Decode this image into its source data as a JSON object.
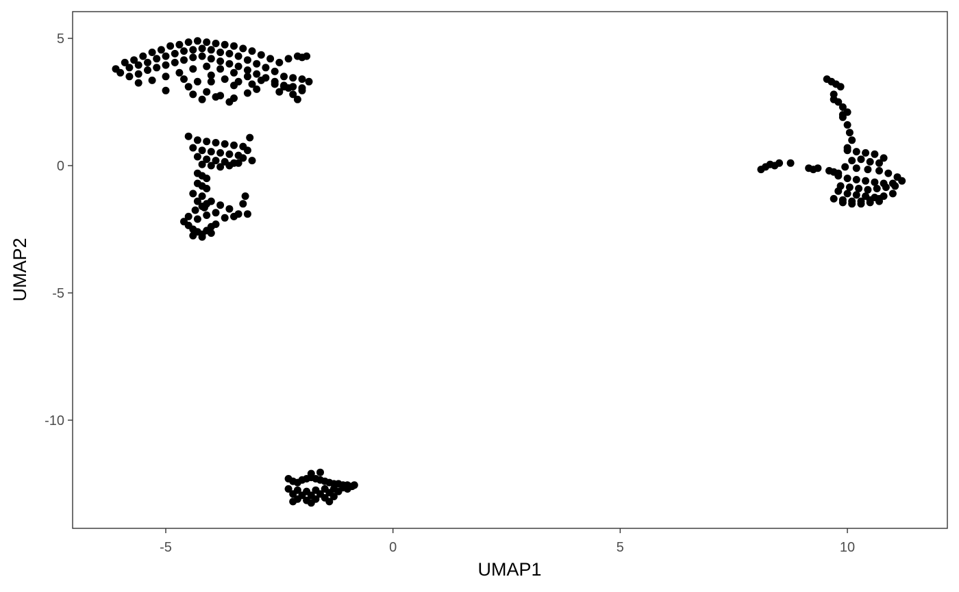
{
  "chart_data": {
    "type": "scatter",
    "title": "",
    "xlabel": "UMAP1",
    "ylabel": "UMAP2",
    "xlim": [
      -7.05,
      12.2
    ],
    "ylim": [
      -14.25,
      6.05
    ],
    "xticks": [
      -5,
      0,
      5,
      10
    ],
    "xtick_labels": [
      "-5",
      "0",
      "5",
      "10"
    ],
    "yticks": [
      5,
      0,
      -5,
      -10
    ],
    "ytick_labels": [
      "5",
      "0",
      "-5",
      "-10"
    ],
    "grid": false,
    "legend": "none",
    "point_color": "#000000",
    "series": [
      {
        "x": [
          -6.1,
          -5.9,
          -5.7,
          -5.5,
          -5.3,
          -5.1,
          -4.9,
          -4.7,
          -4.5,
          -4.3,
          -4.1,
          -3.9,
          -3.7,
          -3.5,
          -3.3,
          -3.1,
          -2.9,
          -2.7,
          -2.5,
          -2.3,
          -2.1,
          -6.0,
          -5.8,
          -5.6,
          -5.4,
          -5.2,
          -5.0,
          -4.8,
          -4.6,
          -4.4,
          -4.2,
          -4.0,
          -3.8,
          -3.6,
          -3.4,
          -3.2,
          -3.0,
          -2.8,
          -2.6,
          -2.4,
          -2.2,
          -2.0,
          -1.85,
          -5.8,
          -5.6,
          -5.4,
          -5.2,
          -5.0,
          -4.8,
          -4.6,
          -4.4,
          -4.2,
          -4.0,
          -3.8,
          -3.6,
          -3.4,
          -3.2,
          -3.0,
          -2.8,
          -2.6,
          -2.4,
          -2.2,
          -2.0,
          -5.6,
          -5.3,
          -5.0,
          -4.7,
          -4.4,
          -4.1,
          -3.8,
          -3.5,
          -3.2,
          -2.9,
          -2.6,
          -2.3,
          -2.0,
          -5.0,
          -4.5,
          -4.0,
          -3.5,
          -3.0,
          -2.5,
          -2.2,
          -4.6,
          -4.3,
          -4.0,
          -3.7,
          -3.4,
          -3.1,
          -2.4,
          -4.4,
          -4.1,
          -3.8,
          -3.5,
          -3.2,
          -2.1,
          -2.0,
          -1.9,
          -4.2,
          -3.9,
          -3.6,
          -4.5,
          -4.3,
          -4.1,
          -3.9,
          -3.7,
          -3.5,
          -3.3,
          -4.4,
          -4.2,
          -4.0,
          -3.8,
          -3.6,
          -3.4,
          -3.2,
          -4.3,
          -4.1,
          -3.9,
          -3.7,
          -3.5,
          -3.3,
          -4.2,
          -4.0,
          -3.8,
          -3.6,
          -3.4,
          -3.1,
          -3.15,
          -4.3,
          -4.2,
          -4.1,
          -4.3,
          -4.2,
          -4.1,
          -4.4,
          -4.2,
          -4.3,
          -4.1,
          -4.2,
          -4.0,
          -3.8,
          -3.6,
          -3.3,
          -3.25,
          -3.2,
          -4.6,
          -4.5,
          -4.4,
          -4.3,
          -4.2,
          -4.1,
          -4.0,
          -3.9,
          -4.5,
          -4.3,
          -4.1,
          -3.9,
          -4.4,
          -4.2,
          -4.0,
          -4.35,
          -4.15,
          -3.7,
          -3.5,
          -3.4,
          -2.3,
          -2.2,
          -2.1,
          -2.0,
          -1.9,
          -1.8,
          -1.7,
          -1.6,
          -1.5,
          -1.4,
          -1.3,
          -1.2,
          -1.1,
          -1.0,
          -0.85,
          -2.3,
          -2.1,
          -1.9,
          -1.7,
          -1.5,
          -1.3,
          -1.1,
          -0.9,
          -2.2,
          -2.0,
          -1.8,
          -1.6,
          -1.4,
          -1.2,
          -1.0,
          -2.1,
          -1.9,
          -1.7,
          -1.5,
          -1.3,
          -1.8,
          -1.6,
          -2.2,
          -1.8,
          -1.4,
          9.55,
          9.65,
          9.75,
          9.85,
          9.7,
          9.8,
          9.9,
          10.0,
          9.9,
          10.0,
          10.05,
          10.1,
          10.0,
          9.7,
          9.9,
          10.0,
          10.2,
          10.4,
          10.6,
          10.8,
          10.1,
          10.3,
          10.5,
          10.7,
          9.95,
          10.2,
          10.45,
          10.7,
          10.9,
          11.1,
          9.8,
          10.0,
          10.2,
          10.4,
          10.6,
          10.8,
          11.0,
          11.2,
          9.85,
          10.05,
          10.25,
          10.45,
          10.65,
          10.85,
          11.05,
          9.8,
          10.0,
          10.2,
          10.4,
          10.6,
          10.8,
          11.0,
          9.7,
          9.9,
          10.1,
          10.3,
          10.5,
          10.7,
          9.9,
          10.1,
          10.3,
          10.5,
          10.7,
          8.1,
          8.2,
          8.3,
          8.4,
          8.5,
          8.75,
          9.15,
          9.25,
          9.35,
          9.6,
          9.7,
          9.8
        ],
        "y": [
          3.8,
          4.05,
          4.15,
          4.3,
          4.45,
          4.55,
          4.7,
          4.75,
          4.85,
          4.9,
          4.85,
          4.8,
          4.75,
          4.7,
          4.6,
          4.5,
          4.35,
          4.2,
          4.05,
          4.2,
          4.3,
          3.65,
          3.85,
          3.95,
          4.05,
          4.2,
          4.3,
          4.4,
          4.5,
          4.55,
          4.6,
          4.55,
          4.45,
          4.4,
          4.3,
          4.15,
          4.0,
          3.85,
          3.7,
          3.5,
          3.45,
          3.4,
          3.3,
          3.5,
          3.6,
          3.75,
          3.85,
          3.95,
          4.05,
          4.15,
          4.25,
          4.3,
          4.2,
          4.1,
          4.0,
          3.9,
          3.75,
          3.6,
          3.45,
          3.3,
          3.15,
          3.1,
          3.05,
          3.25,
          3.35,
          3.5,
          3.65,
          3.8,
          3.9,
          3.8,
          3.65,
          3.5,
          3.35,
          3.2,
          3.05,
          2.95,
          2.95,
          3.1,
          3.3,
          3.15,
          3.0,
          2.9,
          2.8,
          3.4,
          3.3,
          3.55,
          3.4,
          3.3,
          3.2,
          3.1,
          2.8,
          2.9,
          2.75,
          2.65,
          2.85,
          2.6,
          4.25,
          4.3,
          2.6,
          2.7,
          2.5,
          1.15,
          1.0,
          0.95,
          0.9,
          0.85,
          0.8,
          0.75,
          0.7,
          0.6,
          0.55,
          0.5,
          0.45,
          0.4,
          0.6,
          0.35,
          0.25,
          0.2,
          0.15,
          0.1,
          0.3,
          0.05,
          0.0,
          -0.05,
          0.0,
          0.1,
          0.2,
          1.1,
          -0.3,
          -0.4,
          -0.5,
          -0.7,
          -0.8,
          -0.9,
          -1.1,
          -1.2,
          -1.4,
          -1.5,
          -1.6,
          -1.4,
          -1.55,
          -1.7,
          -1.5,
          -1.2,
          -1.9,
          -2.2,
          -2.35,
          -2.5,
          -2.6,
          -2.7,
          -2.55,
          -2.4,
          -2.3,
          -2.0,
          -2.1,
          -1.95,
          -1.85,
          -2.75,
          -2.8,
          -2.65,
          -1.75,
          -1.65,
          -2.05,
          -2.0,
          -1.9,
          -12.3,
          -12.4,
          -12.45,
          -12.35,
          -12.3,
          -12.25,
          -12.3,
          -12.35,
          -12.4,
          -12.45,
          -12.5,
          -12.5,
          -12.55,
          -12.55,
          -12.55,
          -12.7,
          -12.75,
          -12.8,
          -12.75,
          -12.7,
          -12.7,
          -12.65,
          -12.6,
          -12.9,
          -12.95,
          -12.95,
          -12.9,
          -12.85,
          -12.8,
          -12.7,
          -13.1,
          -13.15,
          -13.1,
          -13.05,
          -13.0,
          -12.1,
          -12.05,
          -13.2,
          -13.25,
          -13.2,
          3.4,
          3.3,
          3.2,
          3.1,
          2.8,
          2.5,
          2.3,
          2.1,
          1.9,
          1.6,
          1.3,
          1.0,
          0.7,
          2.6,
          2.0,
          0.6,
          0.55,
          0.5,
          0.45,
          0.3,
          0.2,
          0.25,
          0.15,
          0.1,
          -0.05,
          -0.1,
          -0.15,
          -0.2,
          -0.3,
          -0.45,
          -0.4,
          -0.5,
          -0.55,
          -0.6,
          -0.65,
          -0.7,
          -0.7,
          -0.6,
          -0.8,
          -0.85,
          -0.9,
          -0.95,
          -0.9,
          -0.85,
          -0.8,
          -1.0,
          -1.1,
          -1.15,
          -1.2,
          -1.25,
          -1.2,
          -1.1,
          -1.3,
          -1.35,
          -1.4,
          -1.4,
          -1.35,
          -1.3,
          -1.45,
          -1.5,
          -1.5,
          -1.45,
          -1.4,
          -0.15,
          -0.05,
          0.05,
          0.0,
          0.1,
          0.1,
          -0.1,
          -0.15,
          -0.1,
          -0.2,
          -0.25,
          -0.3
        ]
      }
    ]
  }
}
